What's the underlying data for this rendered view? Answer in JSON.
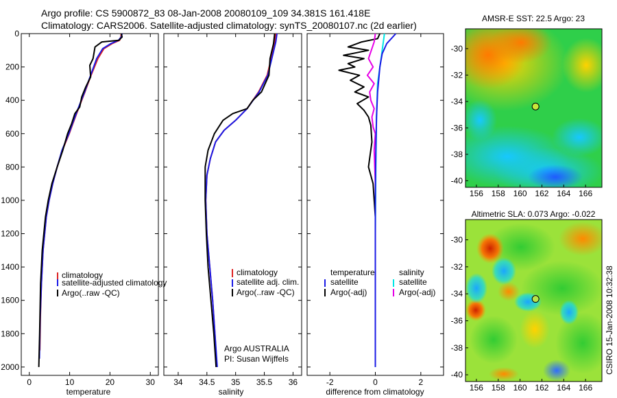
{
  "header": {
    "line1": "Argo profile: CS 5900872_83 08-Jan-2008 20080109_109 34.381S 161.418E",
    "line2": "Climatology: CARS2006. Satellite-adjusted climatology: synTS_20080107.nc (2d earlier)"
  },
  "side_label": "CSIRO 15-Jan-2008 10:32:38",
  "chart_data": [
    {
      "type": "line",
      "id": "temperature",
      "xlabel": "temperature",
      "ylabel": "",
      "xlim": [
        -2,
        32
      ],
      "ylim": [
        2050,
        0
      ],
      "xticks": [
        0,
        10,
        20,
        30
      ],
      "yticks": [
        0,
        200,
        400,
        600,
        800,
        1000,
        1200,
        1400,
        1600,
        1800,
        2000
      ],
      "legend": [
        {
          "label": "climatology",
          "color": "#dd2222"
        },
        {
          "label": "satellite-adjusted climatology",
          "color": "#1a1ae6"
        },
        {
          "label": "Argo(..raw -QC)",
          "color": "#000000"
        }
      ],
      "series": [
        {
          "name": "climatology",
          "color": "#dd2222",
          "width": 2,
          "x": [
            22.8,
            22.7,
            22.4,
            20.5,
            18.5,
            17.0,
            15.3,
            13.8,
            12.2,
            10.8,
            9.9,
            8.2,
            6.9,
            5.8,
            4.9,
            4.2,
            3.4,
            3.0,
            2.75,
            2.6
          ],
          "y": [
            0,
            20,
            40,
            60,
            90,
            150,
            250,
            350,
            450,
            540,
            600,
            700,
            800,
            900,
            1000,
            1100,
            1300,
            1500,
            1700,
            1900
          ]
        },
        {
          "name": "satellite-adjusted climatology",
          "color": "#1a1ae6",
          "width": 2,
          "x": [
            23.0,
            22.8,
            22.1,
            20.2,
            18.2,
            16.7,
            15.2,
            13.7,
            12.1,
            10.7,
            9.8,
            8.1,
            6.9,
            5.8,
            4.9,
            4.2,
            3.4,
            3.0,
            2.7,
            2.5
          ],
          "y": [
            0,
            20,
            40,
            60,
            90,
            150,
            250,
            350,
            450,
            540,
            600,
            700,
            800,
            900,
            1000,
            1100,
            1300,
            1500,
            1700,
            1950
          ]
        },
        {
          "name": "Argo",
          "color": "#000000",
          "width": 2,
          "x": [
            22.8,
            23.0,
            22.2,
            18.0,
            16.3,
            15.8,
            15.0,
            15.2,
            14.0,
            13.0,
            12.5,
            11.3,
            10.5,
            9.5,
            8.3,
            6.9,
            5.6,
            4.7,
            4.0,
            3.2,
            2.8,
            2.55,
            2.35
          ],
          "y": [
            0,
            20,
            40,
            50,
            80,
            150,
            190,
            260,
            320,
            380,
            440,
            480,
            540,
            600,
            700,
            800,
            900,
            1000,
            1100,
            1300,
            1500,
            1800,
            2000
          ]
        }
      ]
    },
    {
      "type": "line",
      "id": "salinity",
      "xlabel": "salinity",
      "ylabel": "",
      "xlim": [
        33.75,
        36.15
      ],
      "ylim": [
        2050,
        0
      ],
      "xticks": [
        34,
        34.5,
        35,
        35.5,
        36
      ],
      "yticks": [
        0,
        200,
        400,
        600,
        800,
        1000,
        1200,
        1400,
        1600,
        1800,
        2000
      ],
      "legend": [
        {
          "label": "climatology",
          "color": "#dd2222"
        },
        {
          "label": "satellite adj. clim.",
          "color": "#1a1ae6"
        },
        {
          "label": "Argo(..raw -QC)",
          "color": "#000000"
        }
      ],
      "annotation": [
        "Argo AUSTRALIA",
        "PI: Susan Wijffels"
      ],
      "series": [
        {
          "name": "climatology",
          "color": "#dd2222",
          "width": 2,
          "x": [
            35.7,
            35.68,
            35.62,
            35.55,
            35.4,
            35.2,
            35.0,
            34.8,
            34.65,
            34.56,
            34.5,
            34.48,
            34.5,
            34.55,
            34.6,
            34.64,
            34.67
          ],
          "y": [
            0,
            50,
            150,
            250,
            350,
            450,
            520,
            580,
            650,
            750,
            850,
            1000,
            1200,
            1400,
            1600,
            1800,
            2000
          ]
        },
        {
          "name": "satellite adj. clim.",
          "color": "#1a1ae6",
          "width": 2,
          "x": [
            35.72,
            35.7,
            35.63,
            35.56,
            35.41,
            35.2,
            35.0,
            34.8,
            34.65,
            34.56,
            34.5,
            34.48,
            34.5,
            34.55,
            34.6,
            34.64,
            34.68
          ],
          "y": [
            0,
            50,
            150,
            250,
            350,
            450,
            520,
            580,
            650,
            750,
            850,
            1000,
            1200,
            1400,
            1600,
            1800,
            2000
          ]
        },
        {
          "name": "Argo",
          "color": "#000000",
          "width": 2,
          "x": [
            35.68,
            35.66,
            35.6,
            35.58,
            35.45,
            35.3,
            35.2,
            34.95,
            34.78,
            34.63,
            34.52,
            34.47,
            34.47,
            34.49,
            34.52,
            34.57,
            34.62,
            34.66
          ],
          "y": [
            0,
            60,
            150,
            250,
            350,
            400,
            450,
            480,
            520,
            600,
            700,
            800,
            1000,
            1200,
            1400,
            1600,
            1800,
            2000
          ]
        }
      ]
    },
    {
      "type": "line",
      "id": "difference",
      "xlabel": "difference from climatology",
      "ylabel": "",
      "xlim": [
        -3,
        3
      ],
      "ylim": [
        2050,
        0
      ],
      "xticks": [
        -2,
        0,
        2
      ],
      "yticks": [
        0,
        200,
        400,
        600,
        800,
        1000,
        1200,
        1400,
        1600,
        1800,
        2000
      ],
      "legend_left_title": "temperature",
      "legend_right_title": "salinity",
      "legend_left": [
        {
          "label": "satellite",
          "color": "#1a1ae6"
        },
        {
          "label": "Argo(-adj)",
          "color": "#000000"
        }
      ],
      "legend_right": [
        {
          "label": "satellite",
          "color": "#00e6e6"
        },
        {
          "label": "Argo(-adj)",
          "color": "#e600e6"
        }
      ],
      "series": [
        {
          "name": "Argo T diff",
          "color": "#000000",
          "width": 2,
          "x": [
            0.2,
            0.1,
            -0.6,
            -1.2,
            -0.3,
            -1.4,
            -0.5,
            -1.2,
            -0.9,
            -1.6,
            -0.7,
            -1.1,
            -0.5,
            -0.9,
            -0.3,
            -0.8,
            -0.5,
            -0.3,
            -0.2,
            -0.15,
            -0.3,
            -0.1,
            -0.05,
            0.0,
            0.0,
            0.0,
            0.0,
            0.0
          ],
          "y": [
            0,
            30,
            50,
            80,
            100,
            130,
            150,
            180,
            200,
            220,
            250,
            280,
            320,
            350,
            380,
            420,
            460,
            500,
            550,
            650,
            800,
            900,
            1000,
            1100,
            1200,
            1500,
            1800,
            2000
          ]
        },
        {
          "name": "Argo S diff",
          "color": "#e600e6",
          "width": 2,
          "x": [
            0.0,
            -0.05,
            -0.3,
            -0.1,
            -0.35,
            -0.05,
            -0.25,
            -0.2,
            -0.05,
            -0.15,
            -0.1,
            0.0,
            -0.05,
            0.0,
            0.0,
            0.0
          ],
          "y": [
            0,
            50,
            150,
            200,
            250,
            300,
            350,
            400,
            450,
            500,
            560,
            600,
            700,
            900,
            1200,
            1500
          ]
        },
        {
          "name": "sat S diff",
          "color": "#00e6e6",
          "width": 2,
          "x": [
            0.4,
            0.3,
            0.1,
            0.05,
            0.02,
            0.0,
            0.0,
            0.0
          ],
          "y": [
            0,
            100,
            300,
            500,
            800,
            1200,
            1600,
            2000
          ]
        },
        {
          "name": "sat T diff",
          "color": "#1a1ae6",
          "width": 2,
          "x": [
            0.9,
            0.7,
            0.5,
            0.3,
            0.2,
            0.1,
            0.05,
            0.02,
            0.0,
            0.0
          ],
          "y": [
            0,
            30,
            60,
            120,
            200,
            350,
            500,
            700,
            1000,
            2000
          ]
        }
      ]
    },
    {
      "type": "heatmap",
      "id": "sst",
      "title": "AMSR-E SST: 22.5 Argo: 23",
      "xlim": [
        155,
        167.5
      ],
      "ylim": [
        -40.5,
        -28.5
      ],
      "xticks": [
        156,
        158,
        160,
        162,
        164,
        166
      ],
      "yticks": [
        -30,
        -32,
        -34,
        -36,
        -38,
        -40
      ],
      "marker": {
        "lon": 161.418,
        "lat": -34.381
      }
    },
    {
      "type": "heatmap",
      "id": "sla",
      "title": "Altimetric SLA: 0.073 Argo: -0.022",
      "xlim": [
        155,
        167.5
      ],
      "ylim": [
        -40.5,
        -28.5
      ],
      "xticks": [
        156,
        158,
        160,
        162,
        164,
        166
      ],
      "yticks": [
        -30,
        -32,
        -34,
        -36,
        -38,
        -40
      ],
      "marker": {
        "lon": 161.418,
        "lat": -34.381
      }
    }
  ]
}
